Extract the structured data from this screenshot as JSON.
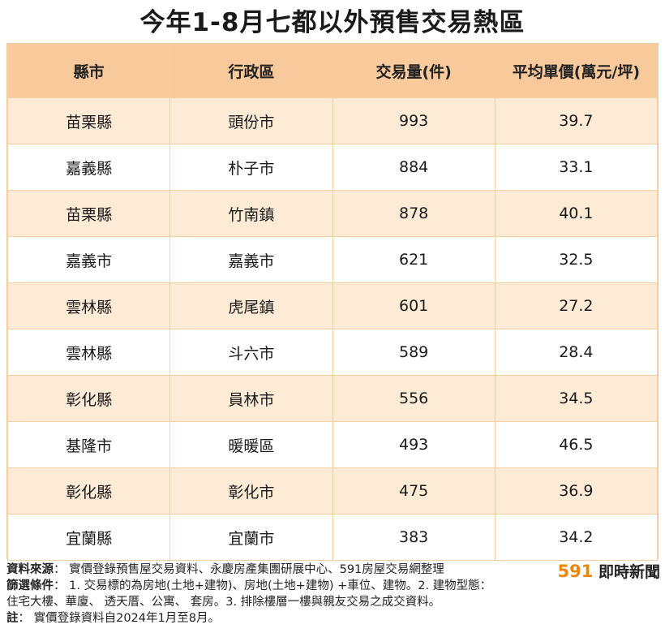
{
  "title": "今年1-8月七都以外預售交易熱區",
  "chart_data": {
    "type": "table",
    "columns": [
      "縣市",
      "行政區",
      "交易量(件)",
      "平均單價(萬元/坪)"
    ],
    "rows": [
      [
        "苗栗縣",
        "頭份市",
        "993",
        "39.7"
      ],
      [
        "嘉義縣",
        "朴子市",
        "884",
        "33.1"
      ],
      [
        "苗栗縣",
        "竹南鎮",
        "878",
        "40.1"
      ],
      [
        "嘉義市",
        "嘉義市",
        "621",
        "32.5"
      ],
      [
        "雲林縣",
        "虎尾鎮",
        "601",
        "27.2"
      ],
      [
        "雲林縣",
        "斗六市",
        "589",
        "28.4"
      ],
      [
        "彰化縣",
        "員林市",
        "556",
        "34.5"
      ],
      [
        "基隆市",
        "暖暖區",
        "493",
        "46.5"
      ],
      [
        "彰化縣",
        "彰化市",
        "475",
        "36.9"
      ],
      [
        "宜蘭縣",
        "宜蘭市",
        "383",
        "34.2"
      ]
    ]
  },
  "footer": {
    "source_label": "資料來源",
    "source_text": "：  實價登錄預售屋交易資料、永慶房產集團研展中心、591房屋交易網整理",
    "filter_label": "篩選條件",
    "filter_text_1": "：  1. 交易標的為房地(土地+建物)、房地(土地+建物) +車位、建物。2. 建物型態：",
    "filter_text_2": "住宅大樓、華廈、 透天厝、公寓、 套房。3. 排除樓層一樓與親友交易之成交資料。",
    "note_label": "註",
    "note_text": "：  實價登錄資料自2024年1月至8月。"
  },
  "brand": {
    "number": "591",
    "text": "即時新聞"
  },
  "colors": {
    "header_bg": "#f8c99a",
    "row_alt_bg": "#fdebd6",
    "brand_accent": "#e8890e"
  }
}
